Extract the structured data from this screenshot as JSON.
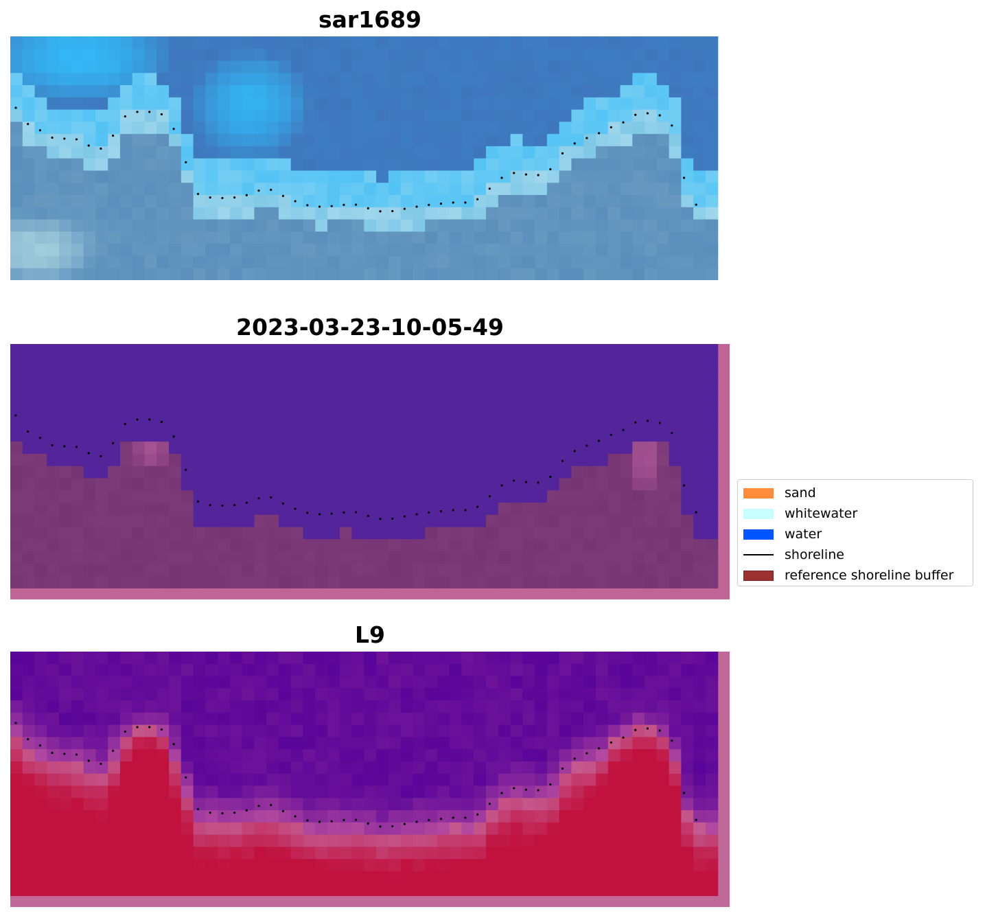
{
  "panels": [
    {
      "title": "sar1689",
      "kind": "rgb"
    },
    {
      "title": "2023-03-23-10-05-49",
      "kind": "classified"
    },
    {
      "title": "L9",
      "kind": "index"
    }
  ],
  "legend": {
    "items": [
      {
        "label": "sand",
        "type": "patch",
        "color": "#ff8c3a"
      },
      {
        "label": "whitewater",
        "type": "patch",
        "color": "#c8ffff"
      },
      {
        "label": "water",
        "type": "patch",
        "color": "#0055ff"
      },
      {
        "label": "shoreline",
        "type": "line",
        "color": "#000000"
      },
      {
        "label": "reference shoreline buffer",
        "type": "patch",
        "color": "#9b3131"
      }
    ]
  },
  "colors": {
    "rgb_deep_water": "#3f77bd",
    "rgb_bright_water": "#33b8f5",
    "rgb_whitewater": "#e9f8fb",
    "rgb_land": "#5b8fbb",
    "class_water": "#53249a",
    "class_land": "#763573",
    "class_buffer_edge": "#c06595",
    "index_low": "#5a0599",
    "index_high": "#c1123f",
    "index_buffer_edge": "#c06898"
  }
}
